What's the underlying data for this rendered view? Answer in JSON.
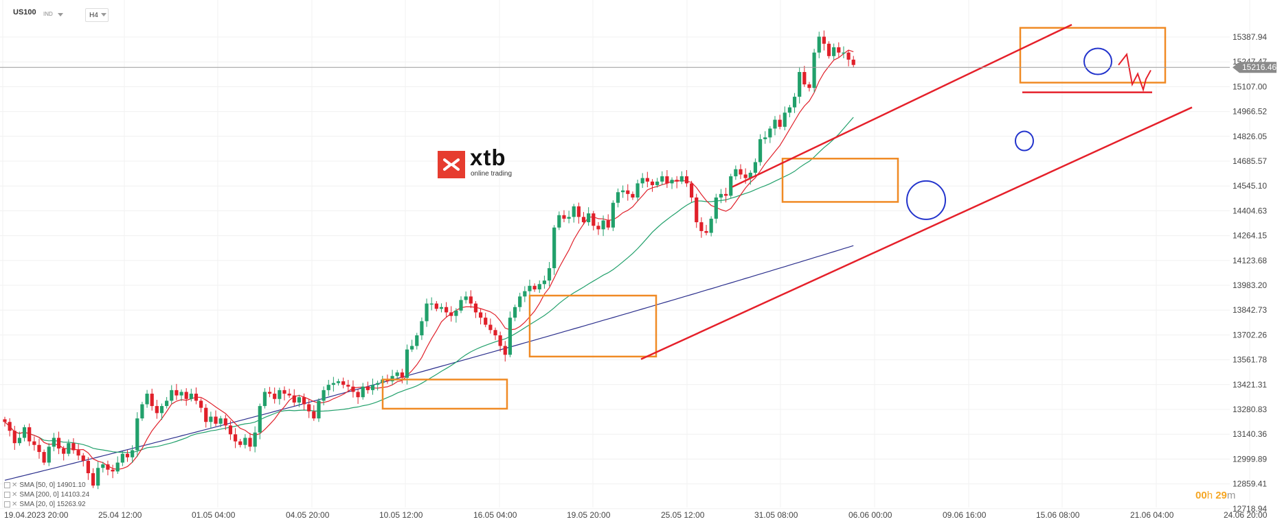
{
  "header": {
    "symbol": "US100",
    "market": "IND",
    "timeframe": "H4"
  },
  "logo": {
    "name": "xtb",
    "tagline": "online trading"
  },
  "indicators": [
    {
      "label": "SMA [50, 0]",
      "value": "14901.10",
      "color": "#21a06b"
    },
    {
      "label": "SMA [200, 0]",
      "value": "14103.24",
      "color": "#2a2e8c"
    },
    {
      "label": "SMA [20, 0]",
      "value": "15263.92",
      "color": "#e0202a"
    }
  ],
  "timer": {
    "hours": "00",
    "minutes": "29",
    "h_unit": "h",
    "m_unit": "m"
  },
  "colors": {
    "up": "#21a06b",
    "down": "#e0202a",
    "box": "#f08a24",
    "channel": "#e5202a",
    "circle": "#2233cc",
    "price_tag": "#8a8a8a"
  },
  "chart_data": {
    "type": "candlestick",
    "instrument": "US100",
    "timeframe": "H4",
    "x_labels": [
      "19.04.2023  20:00",
      "25.04  12:00",
      "01.05  04:00",
      "04.05  20:00",
      "10.05  12:00",
      "16.05  04:00",
      "19.05  20:00",
      "25.05  12:00",
      "31.05  08:00",
      "06.06  00:00",
      "09.06  16:00",
      "15.06  08:00",
      "21.06  04:00",
      "24.06  20:00"
    ],
    "y_ticks": [
      "15387.94",
      "15247.47",
      "15107.00",
      "14966.52",
      "14826.05",
      "14685.57",
      "14545.10",
      "14404.63",
      "14264.15",
      "14123.68",
      "13983.20",
      "13842.73",
      "13702.26",
      "13561.78",
      "13421.31",
      "13280.83",
      "13140.36",
      "12999.89",
      "12859.41",
      "12718.94"
    ],
    "ylim": [
      12718.94,
      15458.18
    ],
    "last_price": "15216.46",
    "grid": true,
    "closes": [
      13210,
      13160,
      13090,
      13120,
      13180,
      13100,
      13080,
      13040,
      12980,
      13070,
      13120,
      13060,
      13030,
      13090,
      13050,
      13020,
      12990,
      12920,
      12850,
      12950,
      12970,
      12940,
      12930,
      12980,
      13030,
      13010,
      13050,
      13230,
      13310,
      13370,
      13300,
      13260,
      13300,
      13330,
      13390,
      13360,
      13380,
      13340,
      13370,
      13330,
      13290,
      13210,
      13240,
      13200,
      13230,
      13190,
      13140,
      13100,
      13080,
      13120,
      13070,
      13150,
      13300,
      13380,
      13370,
      13340,
      13390,
      13370,
      13360,
      13320,
      13350,
      13310,
      13270,
      13230,
      13330,
      13390,
      13420,
      13430,
      13440,
      13420,
      13410,
      13380,
      13350,
      13410,
      13390,
      13420,
      13430,
      13450,
      13440,
      13470,
      13490,
      13460,
      13620,
      13640,
      13700,
      13780,
      13880,
      13880,
      13850,
      13860,
      13830,
      13810,
      13840,
      13900,
      13920,
      13880,
      13830,
      13800,
      13760,
      13730,
      13700,
      13640,
      13590,
      13800,
      13860,
      13920,
      13950,
      13980,
      13960,
      13990,
      14010,
      14080,
      14310,
      14380,
      14360,
      14370,
      14430,
      14370,
      14340,
      14390,
      14320,
      14300,
      14350,
      14310,
      14450,
      14510,
      14520,
      14500,
      14480,
      14560,
      14590,
      14570,
      14550,
      14570,
      14600,
      14560,
      14580,
      14570,
      14600,
      14560,
      14480,
      14340,
      14290,
      14280,
      14360,
      14480,
      14500,
      14490,
      14600,
      14640,
      14610,
      14590,
      14620,
      14680,
      14810,
      14820,
      14870,
      14920,
      14880,
      14960,
      14990,
      15050,
      15190,
      15120,
      15100,
      15300,
      15390,
      15350,
      15280,
      15330,
      15300,
      15300,
      15260,
      15230
    ]
  }
}
